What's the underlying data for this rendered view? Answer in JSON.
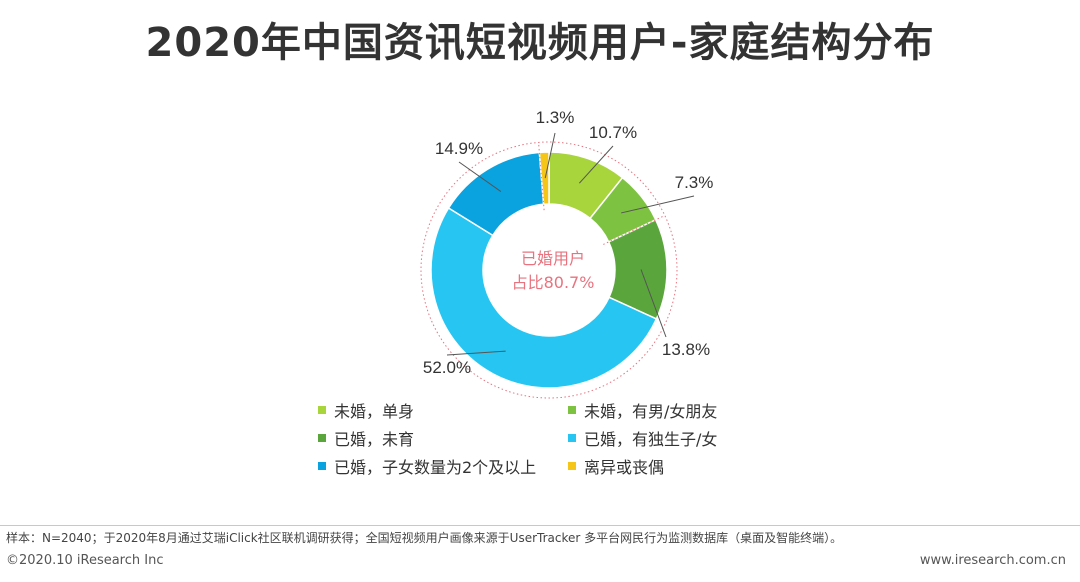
{
  "header": {
    "title": "2020年中国资讯短视频用户-家庭结构分布"
  },
  "chart_data": {
    "type": "pie",
    "title": "2020年中国资讯短视频用户-家庭结构分布",
    "series": [
      {
        "name": "未婚，单身",
        "value": 10.7,
        "label": "10.7%",
        "color": "#a8d43c"
      },
      {
        "name": "未婚，有男/女朋友",
        "value": 7.3,
        "label": "7.3%",
        "color": "#7ec242"
      },
      {
        "name": "已婚，未育",
        "value": 13.8,
        "label": "13.8%",
        "color": "#5aa63c"
      },
      {
        "name": "已婚，有独生子/女",
        "value": 52.0,
        "label": "52.0%",
        "color": "#27c6f2"
      },
      {
        "name": "已婚，子女数量为2个及以上",
        "value": 14.9,
        "label": "14.9%",
        "color": "#0aa3e0"
      },
      {
        "name": "离异或丧偶",
        "value": 1.3,
        "label": "1.3%",
        "color": "#f5c518"
      }
    ],
    "center_annotation": {
      "line1": "已婚用户",
      "line2": "占比80.7%"
    },
    "legend_position": "bottom"
  },
  "legend": {
    "items": [
      {
        "label": "未婚，单身",
        "color": "#a8d43c"
      },
      {
        "label": "未婚，有男/女朋友",
        "color": "#7ec242"
      },
      {
        "label": "已婚，未育",
        "color": "#5aa63c"
      },
      {
        "label": "已婚，有独生子/女",
        "color": "#27c6f2"
      },
      {
        "label": "已婚，子女数量为2个及以上",
        "color": "#0aa3e0"
      },
      {
        "label": "离异或丧偶",
        "color": "#f5c518"
      }
    ]
  },
  "footer": {
    "note": "样本：N=2040；于2020年8月通过艾瑞iClick社区联机调研获得；全国短视频用户画像来源于UserTracker 多平台网民行为监测数据库（桌面及智能终端）。",
    "copyright": "©2020.10 iResearch Inc",
    "website": "www.iresearch.com.cn"
  },
  "colors": {
    "annotation": "#e8737f",
    "leader": "#555555"
  }
}
